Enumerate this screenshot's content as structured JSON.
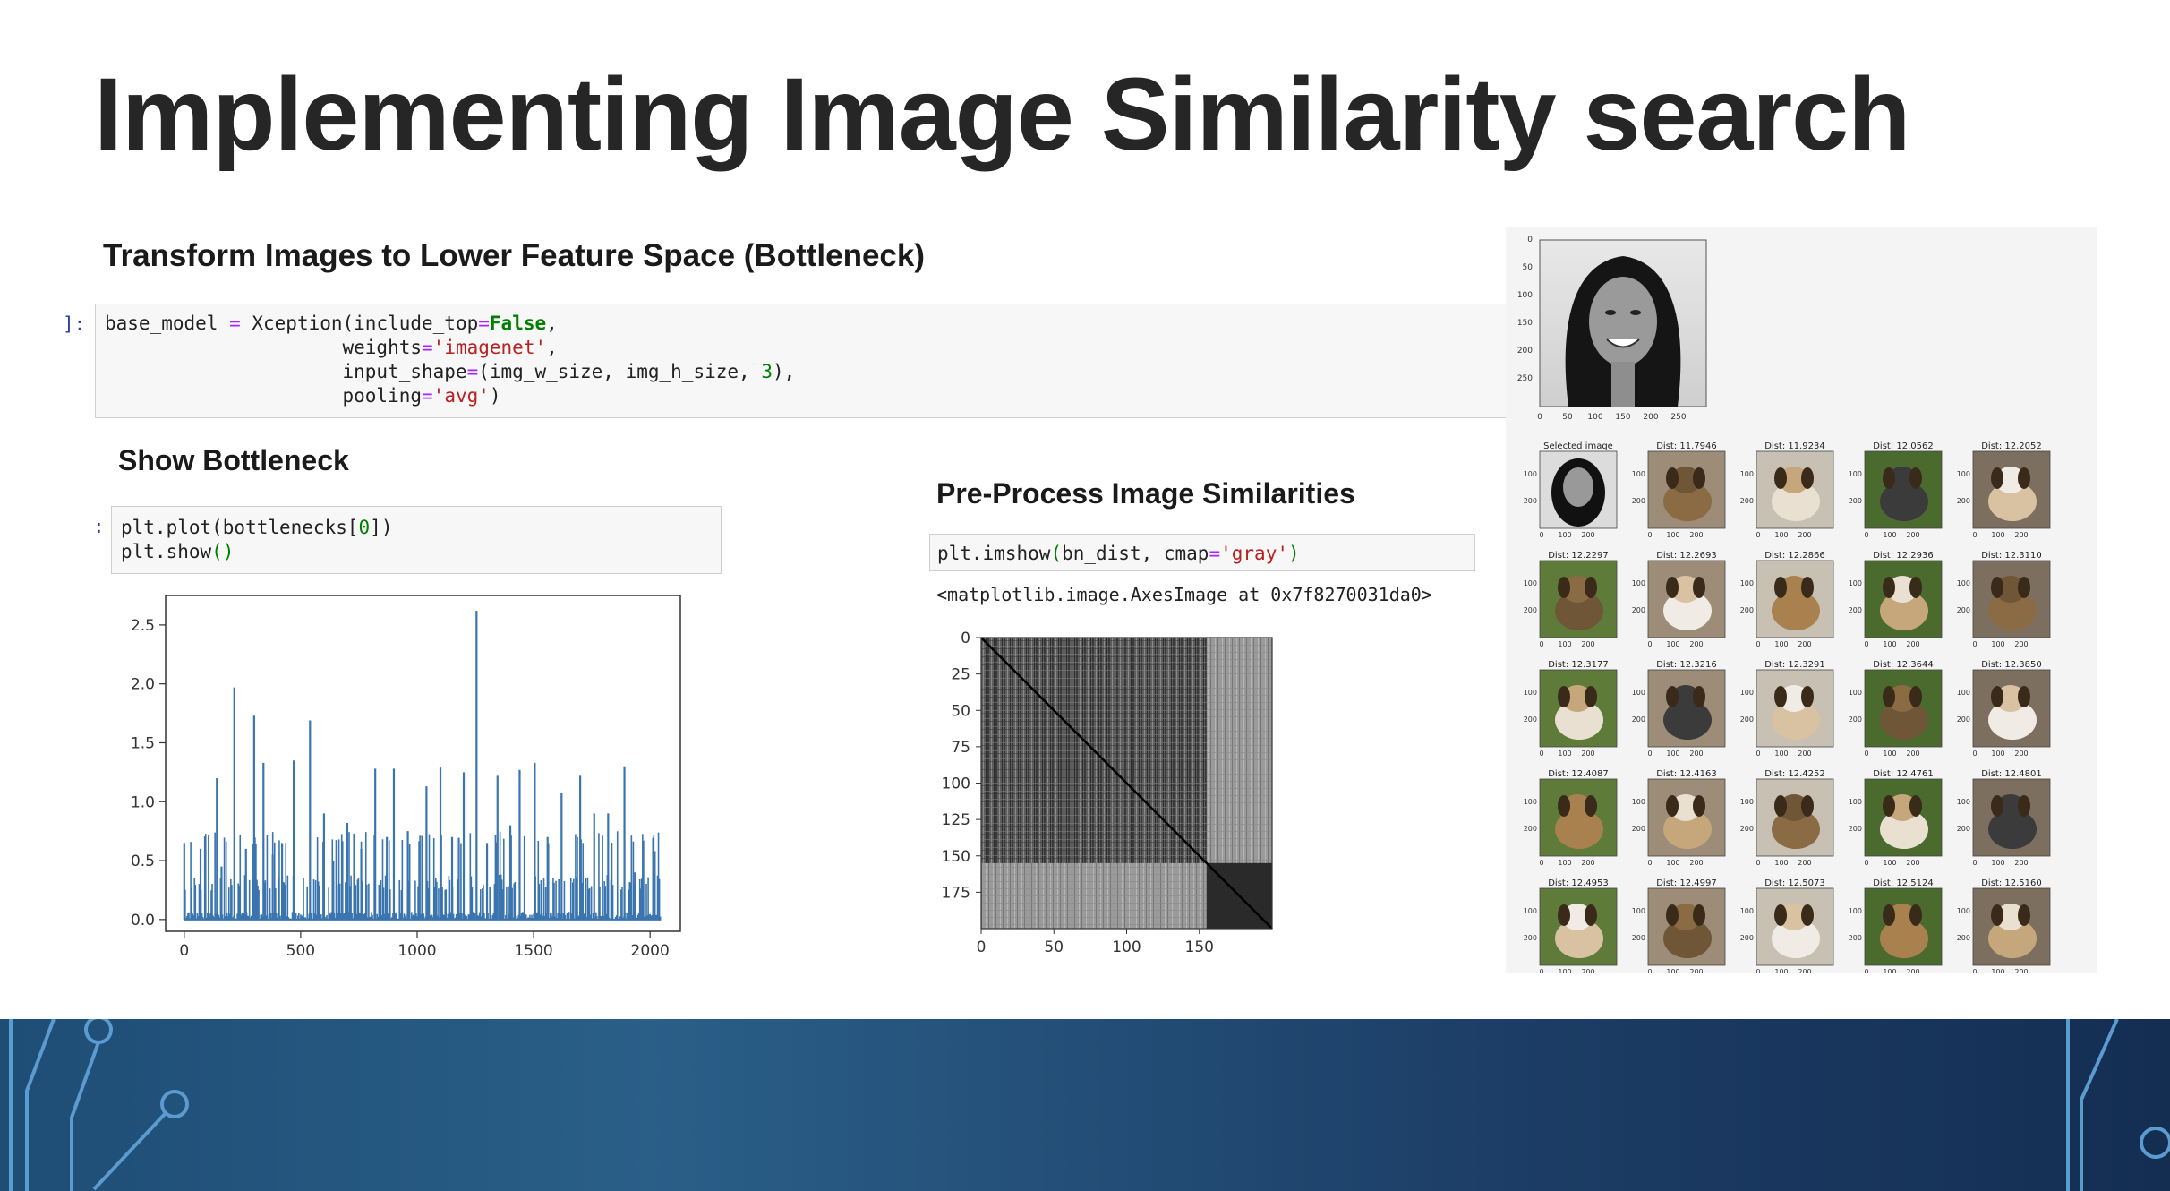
{
  "slide": {
    "title": "Implementing Image Similarity search"
  },
  "sections": {
    "transform_heading": "Transform Images to Lower Feature Space (Bottleneck)",
    "bottleneck_heading": "Show Bottleneck",
    "preprocess_heading": "Pre-Process Image Similarities"
  },
  "code": {
    "cell1_prompt": "]:",
    "cell2_prompt": ":",
    "cell1": {
      "l1_a": "base_model ",
      "l1_op1": "=",
      "l1_b": " Xception(include_top",
      "l1_op2": "=",
      "l1_kw": "False",
      "l1_c": ",",
      "l2_a": "                     weights",
      "l2_op": "=",
      "l2_str": "'imagenet'",
      "l2_c": ",",
      "l3_a": "                     input_shape",
      "l3_op": "=",
      "l3_b": "(img_w_size, img_h_size, ",
      "l3_num": "3",
      "l3_c": "),",
      "l4_a": "                     pooling",
      "l4_op": "=",
      "l4_str": "'avg'",
      "l4_c": ")"
    },
    "cell2": {
      "l1_a": "plt.plot(bottlenecks[",
      "l1_num": "0",
      "l1_b": "])",
      "l2_a": "plt.show",
      "l2_paren": "()"
    },
    "cell3": {
      "a": "plt.imshow",
      "p1": "(",
      "b": "bn_dist, cmap",
      "op": "=",
      "str": "'gray'",
      "p2": ")"
    },
    "output": "<matplotlib.image.AxesImage at 0x7f8270031da0>"
  },
  "chart_data": [
    {
      "type": "line",
      "x_ticks": [
        "0",
        "500",
        "1000",
        "1500",
        "2000"
      ],
      "y_ticks": [
        "0.0",
        "0.5",
        "1.0",
        "1.5",
        "2.0",
        "2.5"
      ],
      "xlim": [
        -80,
        2130
      ],
      "ylim": [
        -0.1,
        2.75
      ],
      "color": "#3b75af",
      "peaks": [
        {
          "x": 0,
          "y": 0.65
        },
        {
          "x": 70,
          "y": 0.6
        },
        {
          "x": 140,
          "y": 1.2
        },
        {
          "x": 160,
          "y": 0.45
        },
        {
          "x": 215,
          "y": 1.97
        },
        {
          "x": 265,
          "y": 0.6
        },
        {
          "x": 300,
          "y": 1.73
        },
        {
          "x": 340,
          "y": 1.33
        },
        {
          "x": 380,
          "y": 0.55
        },
        {
          "x": 420,
          "y": 0.65
        },
        {
          "x": 470,
          "y": 1.35
        },
        {
          "x": 540,
          "y": 1.69
        },
        {
          "x": 600,
          "y": 0.9
        },
        {
          "x": 640,
          "y": 0.5
        },
        {
          "x": 700,
          "y": 0.82
        },
        {
          "x": 760,
          "y": 0.6
        },
        {
          "x": 820,
          "y": 1.28
        },
        {
          "x": 870,
          "y": 0.7
        },
        {
          "x": 900,
          "y": 1.28
        },
        {
          "x": 960,
          "y": 0.75
        },
        {
          "x": 1040,
          "y": 1.13
        },
        {
          "x": 1100,
          "y": 1.29
        },
        {
          "x": 1150,
          "y": 0.7
        },
        {
          "x": 1200,
          "y": 1.25
        },
        {
          "x": 1255,
          "y": 2.62
        },
        {
          "x": 1300,
          "y": 0.65
        },
        {
          "x": 1345,
          "y": 1.22
        },
        {
          "x": 1400,
          "y": 0.8
        },
        {
          "x": 1440,
          "y": 1.27
        },
        {
          "x": 1505,
          "y": 1.33
        },
        {
          "x": 1560,
          "y": 0.7
        },
        {
          "x": 1620,
          "y": 1.07
        },
        {
          "x": 1700,
          "y": 1.22
        },
        {
          "x": 1760,
          "y": 0.9
        },
        {
          "x": 1820,
          "y": 0.9
        },
        {
          "x": 1890,
          "y": 1.3
        },
        {
          "x": 1935,
          "y": 0.4
        },
        {
          "x": 2020,
          "y": 0.58
        }
      ]
    },
    {
      "type": "heatmap",
      "x_ticks": [
        "0",
        "50",
        "100",
        "150"
      ],
      "y_ticks": [
        "0",
        "25",
        "50",
        "75",
        "100",
        "125",
        "150",
        "175"
      ],
      "size": 200,
      "block_split": 155,
      "colormap": "gray"
    }
  ],
  "results": {
    "query_y_ticks": [
      "0",
      "50",
      "100",
      "150",
      "200",
      "250"
    ],
    "query_x_ticks": [
      "0",
      "50",
      "100",
      "150",
      "200",
      "250"
    ],
    "grid_titles": [
      "Selected image",
      "Dist: 11.7946",
      "Dist: 11.9234",
      "Dist: 12.0562",
      "Dist: 12.2052",
      "Dist: 12.2297",
      "Dist: 12.2693",
      "Dist: 12.2866",
      "Dist: 12.2936",
      "Dist: 12.3110",
      "Dist: 12.3177",
      "Dist: 12.3216",
      "Dist: 12.3291",
      "Dist: 12.3644",
      "Dist: 12.3850",
      "Dist: 12.4087",
      "Dist: 12.4163",
      "Dist: 12.4252",
      "Dist: 12.4761",
      "Dist: 12.4801",
      "Dist: 12.4953",
      "Dist: 12.4997",
      "Dist: 12.5073",
      "Dist: 12.5124",
      "Dist: 12.5160"
    ],
    "thumb_ticks_y": [
      "100",
      "200"
    ],
    "thumb_ticks_x": [
      "0",
      "100",
      "200"
    ]
  }
}
